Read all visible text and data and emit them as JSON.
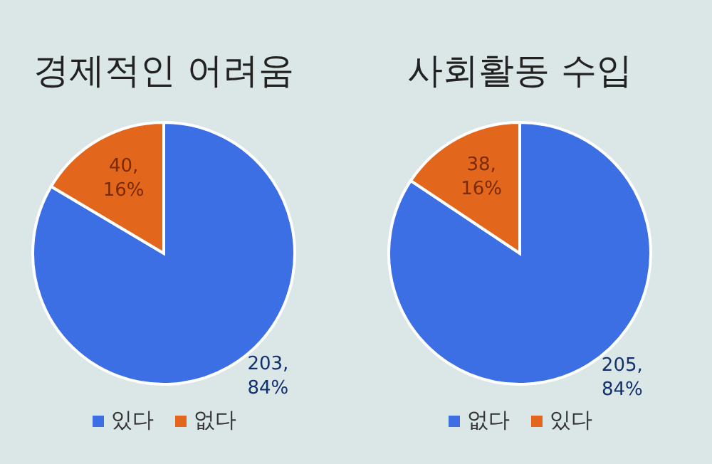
{
  "chart_data": [
    {
      "type": "pie",
      "title": "경제적인 어려움",
      "categories": [
        "있다",
        "없다"
      ],
      "values": [
        203,
        40
      ],
      "colors": [
        "#3b6fe3",
        "#e2661c"
      ],
      "value_labels": [
        "203, 84%",
        "40, 16%"
      ],
      "legend": "bottom"
    },
    {
      "type": "pie",
      "title": "사회활동 수입",
      "categories": [
        "없다",
        "있다"
      ],
      "values": [
        205,
        38
      ],
      "colors": [
        "#3b6fe3",
        "#e2661c"
      ],
      "value_labels": [
        "205, 84%",
        "38, 16%"
      ],
      "legend": "bottom"
    }
  ]
}
